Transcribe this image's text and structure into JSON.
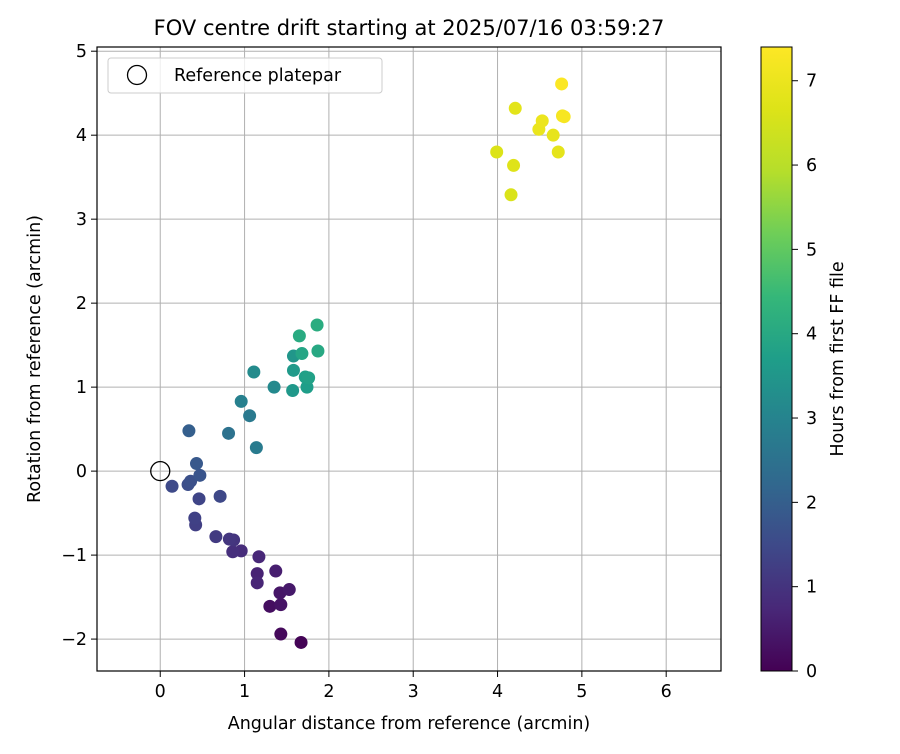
{
  "chart_data": {
    "type": "scatter",
    "title": "FOV centre drift starting at 2025/07/16 03:59:27",
    "xlabel": "Angular distance from reference (arcmin)",
    "ylabel": "Rotation from reference (arcmin)",
    "xlim": [
      -0.75,
      6.65
    ],
    "ylim": [
      -2.38,
      5.05
    ],
    "xticks": [
      0,
      1,
      2,
      3,
      4,
      5,
      6
    ],
    "yticks": [
      -2,
      -1,
      0,
      1,
      2,
      3,
      4,
      5
    ],
    "grid": true,
    "legend": {
      "placement": "top-left",
      "entries": [
        "Reference platepar"
      ]
    },
    "reference_point": {
      "x": 0,
      "y": 0,
      "label": "Reference platepar"
    },
    "colorbar": {
      "label": "Hours from first FF file",
      "min": 0,
      "max": 7.4,
      "ticks": [
        0,
        1,
        2,
        3,
        4,
        5,
        6,
        7
      ],
      "colormap": "viridis"
    },
    "points": [
      {
        "x": 1.67,
        "y": -2.04,
        "t": 0.05
      },
      {
        "x": 1.43,
        "y": -1.94,
        "t": 0.15
      },
      {
        "x": 1.3,
        "y": -1.61,
        "t": 0.25
      },
      {
        "x": 1.43,
        "y": -1.59,
        "t": 0.35
      },
      {
        "x": 1.42,
        "y": -1.45,
        "t": 0.4
      },
      {
        "x": 1.53,
        "y": -1.41,
        "t": 0.45
      },
      {
        "x": 1.37,
        "y": -1.19,
        "t": 0.55
      },
      {
        "x": 1.15,
        "y": -1.22,
        "t": 0.65
      },
      {
        "x": 1.15,
        "y": -1.33,
        "t": 0.7
      },
      {
        "x": 1.17,
        "y": -1.02,
        "t": 0.75
      },
      {
        "x": 0.96,
        "y": -0.95,
        "t": 0.85
      },
      {
        "x": 0.86,
        "y": -0.96,
        "t": 0.9
      },
      {
        "x": 0.87,
        "y": -0.82,
        "t": 1.0
      },
      {
        "x": 0.82,
        "y": -0.81,
        "t": 1.05
      },
      {
        "x": 0.66,
        "y": -0.78,
        "t": 1.15
      },
      {
        "x": 0.42,
        "y": -0.64,
        "t": 1.25
      },
      {
        "x": 0.41,
        "y": -0.56,
        "t": 1.3
      },
      {
        "x": 0.46,
        "y": -0.33,
        "t": 1.4
      },
      {
        "x": 0.71,
        "y": -0.3,
        "t": 1.45
      },
      {
        "x": 0.14,
        "y": -0.18,
        "t": 1.5
      },
      {
        "x": 0.33,
        "y": -0.16,
        "t": 1.6
      },
      {
        "x": 0.36,
        "y": -0.12,
        "t": 1.65
      },
      {
        "x": 0.47,
        "y": -0.05,
        "t": 1.75
      },
      {
        "x": 0.43,
        "y": 0.09,
        "t": 1.85
      },
      {
        "x": 0.34,
        "y": 0.48,
        "t": 2.0
      },
      {
        "x": 0.81,
        "y": 0.45,
        "t": 2.5
      },
      {
        "x": 1.14,
        "y": 0.28,
        "t": 2.75
      },
      {
        "x": 1.06,
        "y": 0.66,
        "t": 2.7
      },
      {
        "x": 0.96,
        "y": 0.83,
        "t": 2.9
      },
      {
        "x": 1.35,
        "y": 1.0,
        "t": 3.15
      },
      {
        "x": 1.11,
        "y": 1.18,
        "t": 3.2
      },
      {
        "x": 1.57,
        "y": 0.96,
        "t": 3.55
      },
      {
        "x": 1.74,
        "y": 1.0,
        "t": 3.7
      },
      {
        "x": 1.72,
        "y": 1.12,
        "t": 3.75
      },
      {
        "x": 1.76,
        "y": 1.11,
        "t": 3.8
      },
      {
        "x": 1.58,
        "y": 1.2,
        "t": 3.6
      },
      {
        "x": 1.58,
        "y": 1.37,
        "t": 3.5
      },
      {
        "x": 1.68,
        "y": 1.4,
        "t": 3.9
      },
      {
        "x": 1.87,
        "y": 1.43,
        "t": 4.0
      },
      {
        "x": 1.65,
        "y": 1.61,
        "t": 4.05
      },
      {
        "x": 1.86,
        "y": 1.74,
        "t": 4.1
      },
      {
        "x": 4.16,
        "y": 3.29,
        "t": 6.6
      },
      {
        "x": 4.19,
        "y": 3.64,
        "t": 6.7
      },
      {
        "x": 3.99,
        "y": 3.8,
        "t": 6.65
      },
      {
        "x": 4.72,
        "y": 3.8,
        "t": 6.85
      },
      {
        "x": 4.66,
        "y": 4.0,
        "t": 6.9
      },
      {
        "x": 4.49,
        "y": 4.07,
        "t": 6.95
      },
      {
        "x": 4.53,
        "y": 4.17,
        "t": 7.0
      },
      {
        "x": 4.21,
        "y": 4.32,
        "t": 6.8
      },
      {
        "x": 4.77,
        "y": 4.23,
        "t": 7.2
      },
      {
        "x": 4.79,
        "y": 4.22,
        "t": 7.25
      },
      {
        "x": 4.76,
        "y": 4.61,
        "t": 7.35
      }
    ]
  }
}
